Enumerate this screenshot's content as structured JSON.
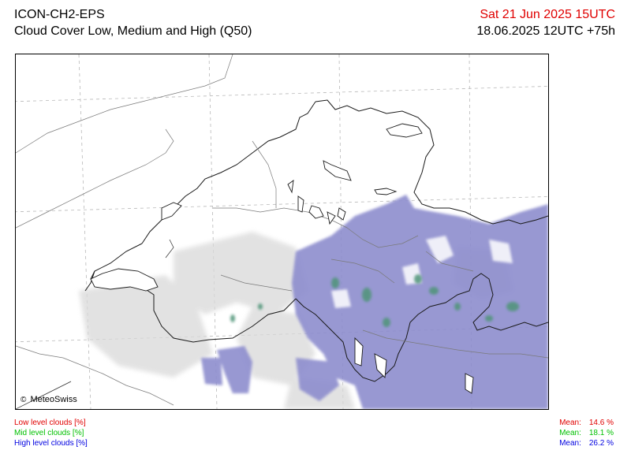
{
  "header": {
    "model": "ICON-CH2-EPS",
    "product": "Cloud Cover Low, Medium and High (Q50)",
    "valid_time": "Sat 21 Jun 2025 15UTC",
    "run_time": "18.06.2025 12UTC +75h"
  },
  "map": {
    "credit": "MeteoSwiss",
    "credit_symbol": "©",
    "colors": {
      "high_clouds": "#8f8fd0",
      "mid_clouds": "#5a9a78",
      "low_clouds": "#d7d7d7"
    }
  },
  "legend": {
    "items": [
      {
        "label": "Low level clouds [%]",
        "mean_label": "Mean:",
        "mean_value": "14.6 %",
        "color": "#e00000"
      },
      {
        "label": "Mid level clouds [%]",
        "mean_label": "Mean:",
        "mean_value": "18.1 %",
        "color": "#00c000"
      },
      {
        "label": "High level clouds [%]",
        "mean_label": "Mean:",
        "mean_value": "26.2 %",
        "color": "#0000e0"
      }
    ]
  }
}
